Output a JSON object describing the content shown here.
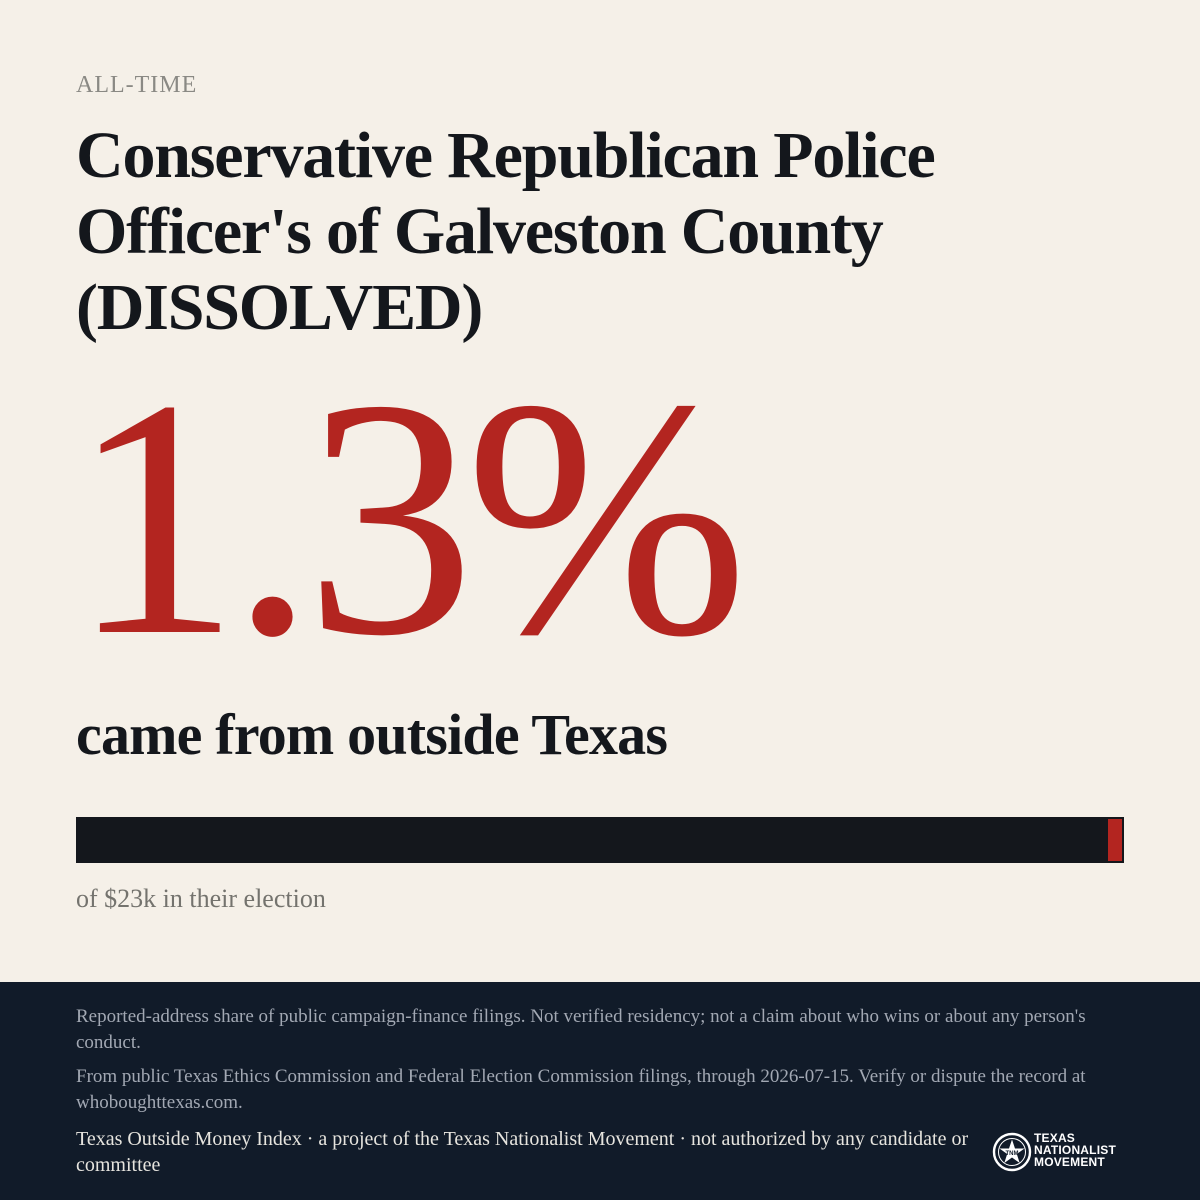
{
  "eyebrow": "ALL-TIME",
  "title": "Conservative Republican Police Officer's of Galveston County (DISSOLVED)",
  "headline_percent": "1.3%",
  "subline": "came from outside Texas",
  "bar": {
    "outside_share_percent": 1.3,
    "colors": {
      "track": "#14171c",
      "fill": "#b32520"
    }
  },
  "total_note": "of $23k in their election",
  "footer": {
    "disclaimer": "Reported-address share of public campaign-finance filings. Not verified residency; not a claim about who wins or about any person's conduct.",
    "source": "From public Texas Ethics Commission and Federal Election Commission filings, through 2026-07-15. Verify or dispute the record at whoboughttexas.com.",
    "credit": "Texas Outside Money Index · a project of the Texas Nationalist Movement · not authorized by any candidate or committee",
    "logo": {
      "icon": "tnm-star-seal-icon",
      "line1": "TEXAS",
      "line2": "NATIONALIST",
      "line3": "MOVEMENT"
    }
  },
  "colors": {
    "background": "#f5f0e8",
    "accent": "#b32520",
    "ink": "#14171c",
    "footer": "#111b29"
  }
}
